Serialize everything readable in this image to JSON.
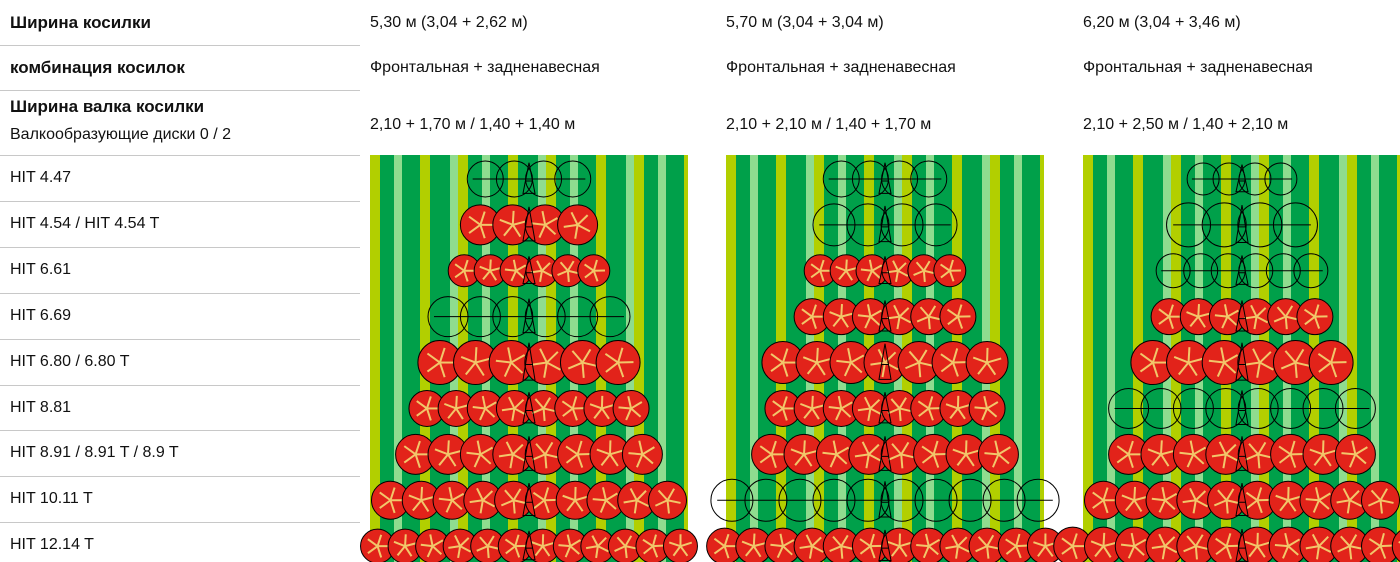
{
  "header_rows": [
    {
      "label": "Ширина косилки",
      "values": [
        "5,30 м (3,04 + 2,62 м)",
        "5,70 м (3,04 + 3,04 м)",
        "6,20 м (3,04 + 3,46 м)"
      ]
    },
    {
      "label": "комбинация косилок",
      "values": [
        "Фронтальная + задненавесная",
        "Фронтальная + задненавесная",
        "Фронтальная + задненавесная"
      ]
    },
    {
      "label": "Ширина валка косилки",
      "sublabel": "Валкообразующие диски 0 / 2",
      "values": [
        "2,10 + 1,70 м / 1,40 + 1,40 м",
        "2,10 + 2,10 м / 1,40 + 1,70 м",
        "2,10 + 2,50 м / 1,40 + 2,10 м"
      ]
    }
  ],
  "models": [
    "HIT 4.47",
    "HIT 4.54 / HIT 4.54 T",
    "HIT 6.61",
    "HIT 6.69",
    "HIT 6.80 / 6.80 T",
    "HIT 8.81",
    "HIT 8.91 / 8.91 T / 8.9 T",
    "HIT 10.11 T",
    "HIT 12.14 T"
  ]
}
